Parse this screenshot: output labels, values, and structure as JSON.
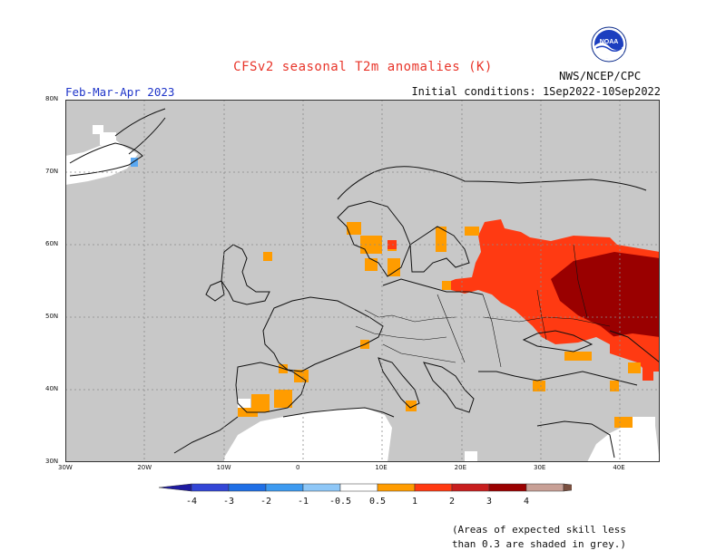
{
  "header": {
    "title": "CFSv2 seasonal T2m anomalies (K)",
    "period": "Feb-Mar-Apr 2023",
    "initial_conditions": "Initial conditions: 1Sep2022-10Sep2022",
    "agency": "NWS/NCEP/CPC",
    "logo_text": "NOAA"
  },
  "map": {
    "lat_labels": [
      "80N",
      "70N",
      "60N",
      "50N",
      "40N",
      "30N"
    ],
    "lon_labels": [
      "30W",
      "20W",
      "10W",
      "0",
      "10E",
      "20E",
      "30E",
      "40E"
    ],
    "lat_range": [
      30,
      80
    ],
    "lon_range": [
      -30,
      45
    ],
    "background_color": "#c8c8c8",
    "grid": true
  },
  "colorbar": {
    "labels": [
      "-4",
      "-3",
      "-2",
      "-1",
      "-0.5",
      "0.5",
      "1",
      "2",
      "3",
      "4"
    ],
    "colors": [
      "#1e1aa0",
      "#3346d6",
      "#1f6fe6",
      "#3d9af0",
      "#8ec7f7",
      "#ffffff",
      "#ff9c00",
      "#ff3a12",
      "#c81e1e",
      "#9a0000",
      "#c8a096",
      "#7a5040"
    ]
  },
  "note": {
    "line1": "(Areas of expected skill less",
    "line2": "than 0.3 are shaded in grey.)"
  }
}
